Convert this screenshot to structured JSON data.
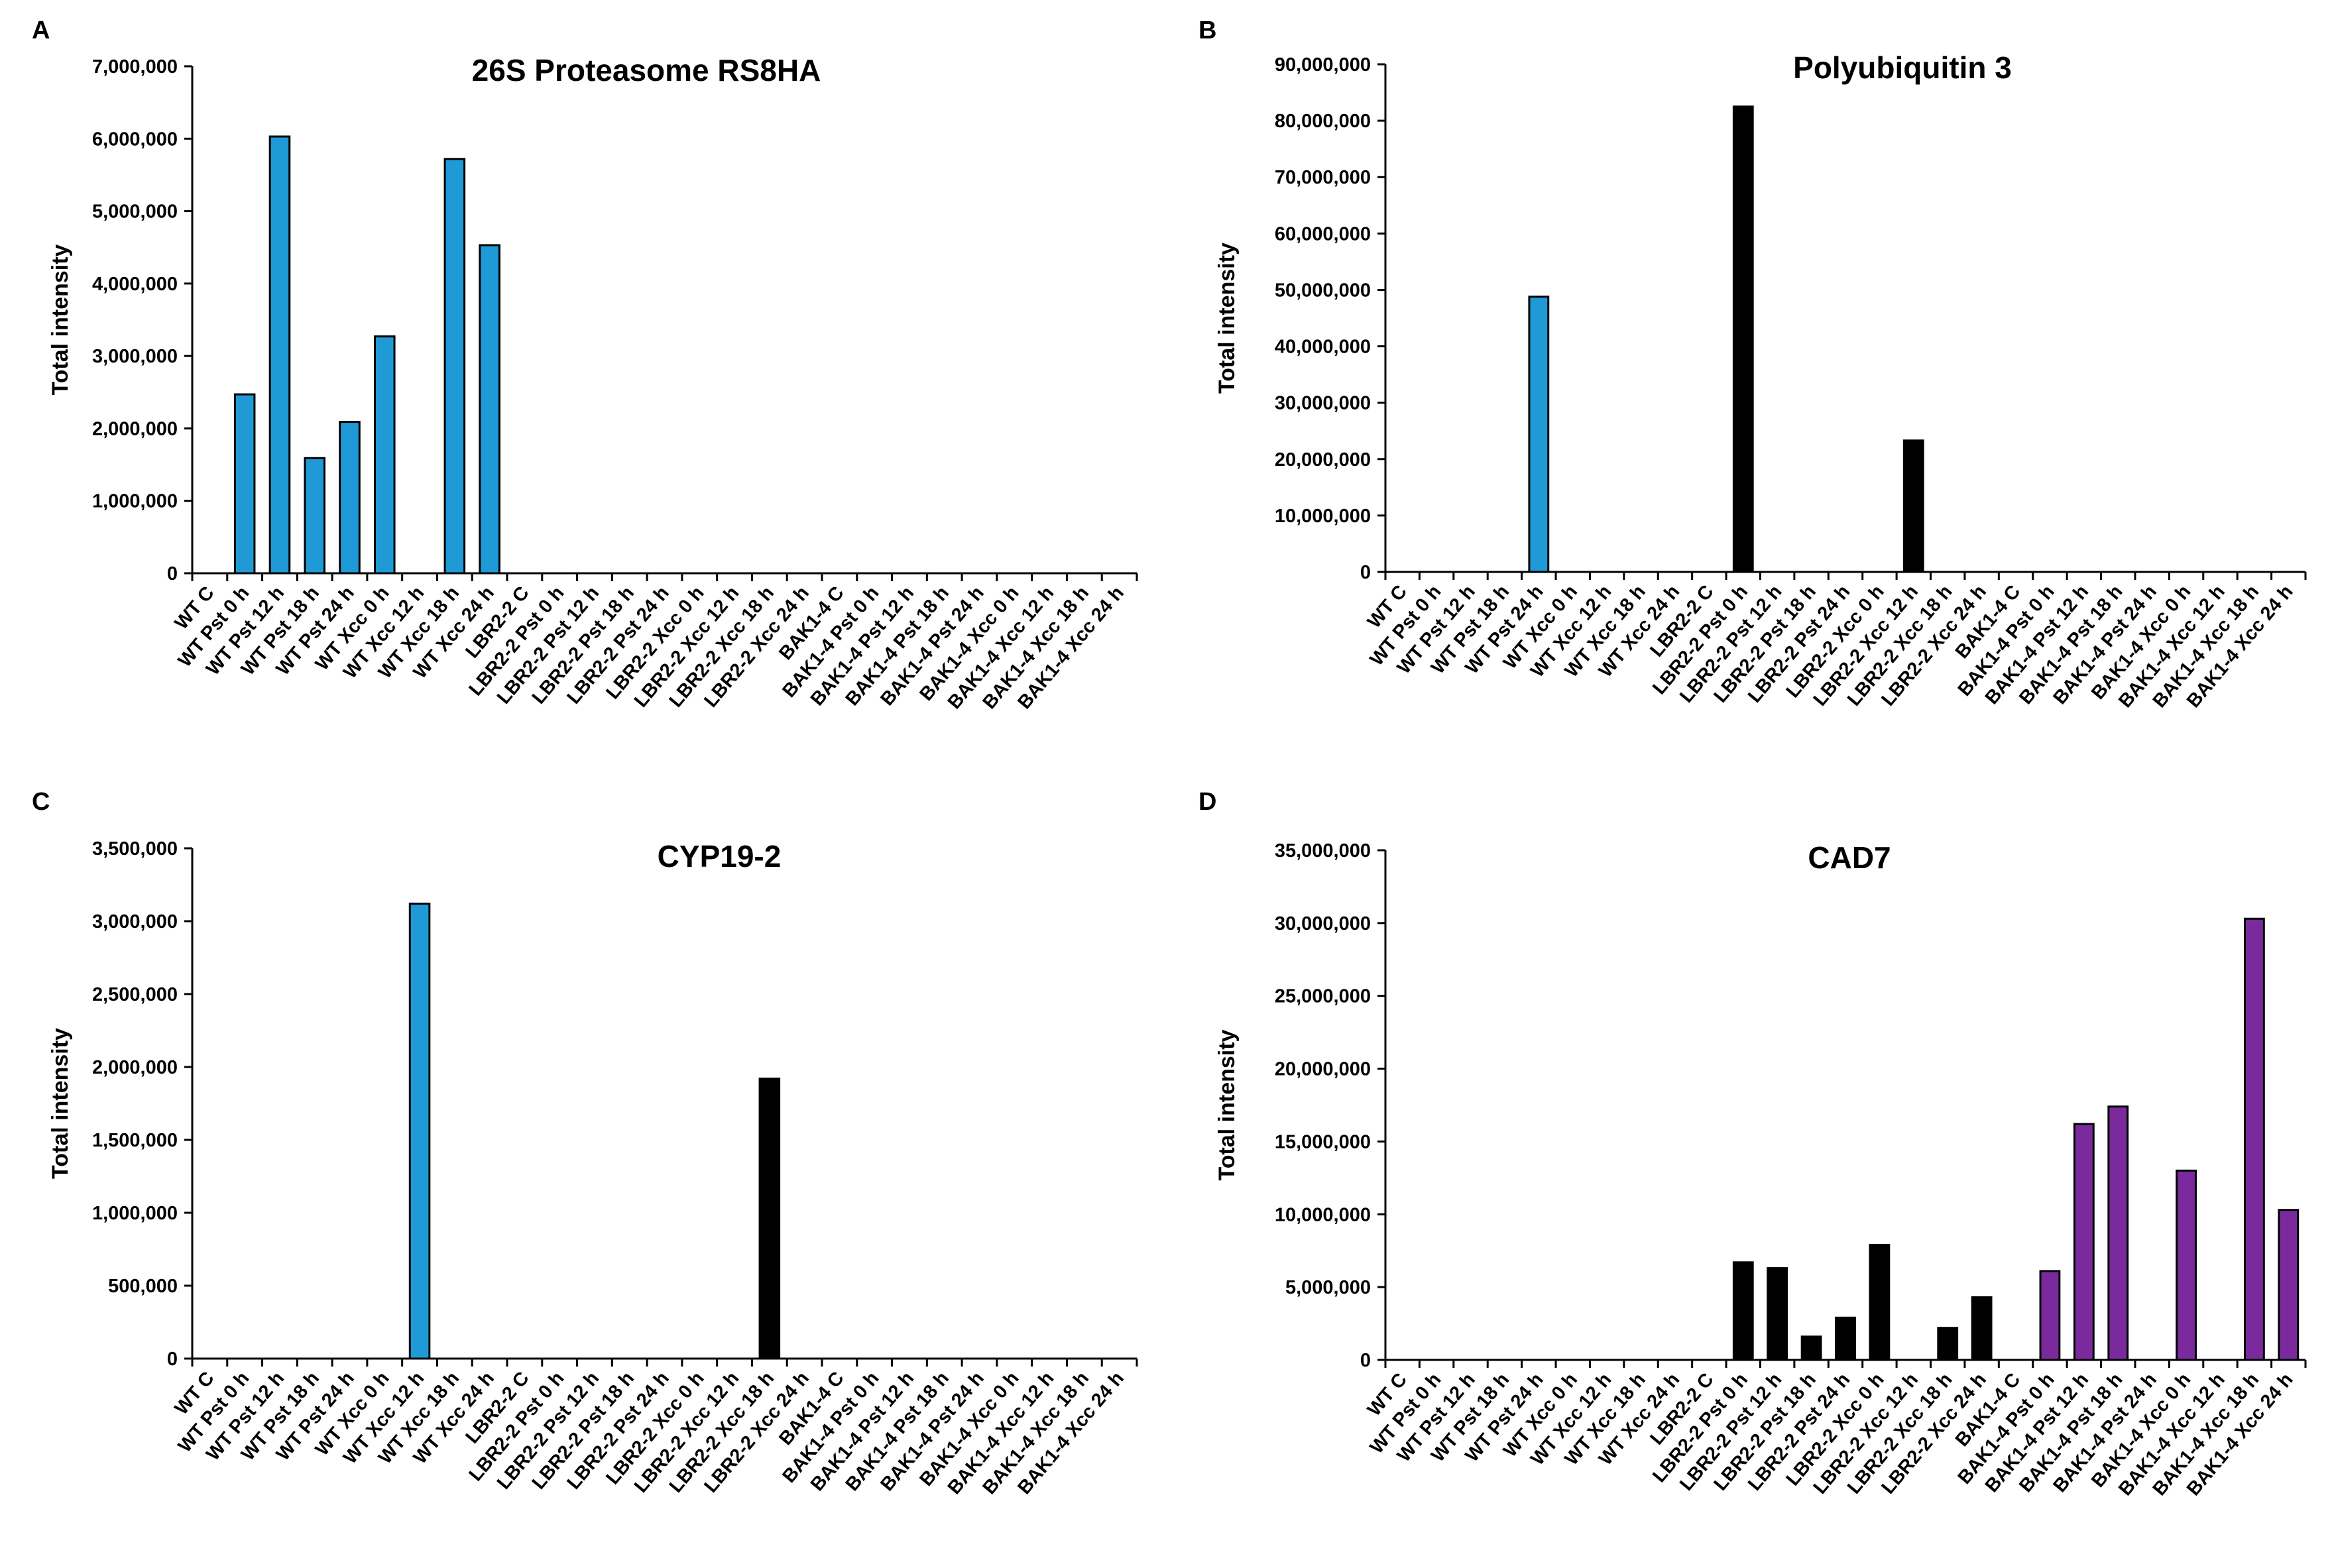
{
  "chart_data": [
    {
      "panel": "A",
      "type": "bar",
      "title": "26S Proteasome RS8HA",
      "ylabel": "Total intensity",
      "xlabel": "",
      "ylim": [
        0,
        7000000
      ],
      "yticks": [
        0,
        1000000,
        2000000,
        3000000,
        4000000,
        5000000,
        6000000,
        7000000
      ],
      "ytick_labels": [
        "0",
        "1,000,000",
        "2,000,000",
        "3,000,000",
        "4,000,000",
        "5,000,000",
        "6,000,000",
        "7,000,000"
      ],
      "categories": [
        "WT C",
        "WT Pst 0 h",
        "WT Pst 12 h",
        "WT Pst 18 h",
        "WT Pst 24 h",
        "WT Xcc 0 h",
        "WT Xcc 12 h",
        "WT Xcc 18 h",
        "WT Xcc 24 h",
        "LBR2-2 C",
        "LBR2-2 Pst 0 h",
        "LBR2-2 Pst 12 h",
        "LBR2-2 Pst 18 h",
        "LBR2-2 Pst 24 h",
        "LBR2-2 Xcc 0 h",
        "LBR2-2 Xcc 12 h",
        "LBR2-2 Xcc 18 h",
        "LBR2-2 Xcc 24 h",
        "BAK1-4 C",
        "BAK1-4 Pst 0 h",
        "BAK1-4 Pst 12 h",
        "BAK1-4 Pst 18 h",
        "BAK1-4 Pst 24 h",
        "BAK1-4 Xcc 0 h",
        "BAK1-4 Xcc 12 h",
        "BAK1-4 Xcc 18 h",
        "BAK1-4 Xcc 24 h"
      ],
      "values": [
        0,
        2470000,
        6030000,
        1590000,
        2090000,
        3270000,
        0,
        5720000,
        4530000,
        0,
        0,
        0,
        0,
        0,
        0,
        0,
        0,
        0,
        0,
        0,
        0,
        0,
        0,
        0,
        0,
        0,
        0
      ],
      "group_colors": {
        "WT": "#1f9ad6",
        "LBR2-2": "#000000",
        "BAK1-4": "#7b2a9e"
      }
    },
    {
      "panel": "B",
      "type": "bar",
      "title": "Polyubiquitin 3",
      "ylabel": "Total intensity",
      "xlabel": "",
      "ylim": [
        0,
        90000000
      ],
      "yticks": [
        0,
        10000000,
        20000000,
        30000000,
        40000000,
        50000000,
        60000000,
        70000000,
        80000000,
        90000000
      ],
      "ytick_labels": [
        "0",
        "10,000,000",
        "20,000,000",
        "30,000,000",
        "40,000,000",
        "50,000,000",
        "60,000,000",
        "70,000,000",
        "80,000,000",
        "90,000,000"
      ],
      "categories": [
        "WT C",
        "WT Pst 0 h",
        "WT Pst 12 h",
        "WT Pst 18 h",
        "WT Pst 24 h",
        "WT Xcc 0 h",
        "WT Xcc 12 h",
        "WT Xcc 18 h",
        "WT Xcc 24 h",
        "LBR2-2 C",
        "LBR2-2 Pst 0 h",
        "LBR2-2 Pst 12 h",
        "LBR2-2 Pst 18 h",
        "LBR2-2 Pst 24 h",
        "LBR2-2 Xcc 0 h",
        "LBR2-2 Xcc 12 h",
        "LBR2-2 Xcc 18 h",
        "LBR2-2 Xcc 24 h",
        "BAK1-4 C",
        "BAK1-4 Pst 0 h",
        "BAK1-4 Pst 12 h",
        "BAK1-4 Pst 18 h",
        "BAK1-4 Pst 24 h",
        "BAK1-4 Xcc 0 h",
        "BAK1-4 Xcc 12 h",
        "BAK1-4 Xcc 18 h",
        "BAK1-4 Xcc 24 h"
      ],
      "values": [
        0,
        0,
        0,
        0,
        48800000,
        0,
        0,
        0,
        0,
        0,
        82500000,
        0,
        0,
        0,
        0,
        23300000,
        0,
        0,
        0,
        0,
        0,
        0,
        0,
        0,
        0,
        0,
        0
      ],
      "group_colors": {
        "WT": "#1f9ad6",
        "LBR2-2": "#000000",
        "BAK1-4": "#7b2a9e"
      }
    },
    {
      "panel": "C",
      "type": "bar",
      "title": "CYP19-2",
      "ylabel": "Total intensity",
      "xlabel": "",
      "ylim": [
        0,
        3500000
      ],
      "yticks": [
        0,
        500000,
        1000000,
        1500000,
        2000000,
        2500000,
        3000000,
        3500000
      ],
      "ytick_labels": [
        "0",
        "500,000",
        "1,000,000",
        "1,500,000",
        "2,000,000",
        "2,500,000",
        "3,000,000",
        "3,500,000"
      ],
      "categories": [
        "WT C",
        "WT Pst 0 h",
        "WT Pst 12 h",
        "WT Pst 18 h",
        "WT Pst 24 h",
        "WT Xcc 0 h",
        "WT Xcc 12 h",
        "WT Xcc 18 h",
        "WT Xcc 24 h",
        "LBR2-2 C",
        "LBR2-2 Pst 0 h",
        "LBR2-2 Pst 12 h",
        "LBR2-2 Pst 18 h",
        "LBR2-2 Pst 24 h",
        "LBR2-2 Xcc 0 h",
        "LBR2-2 Xcc 12 h",
        "LBR2-2 Xcc 18 h",
        "LBR2-2 Xcc 24 h",
        "BAK1-4 C",
        "BAK1-4 Pst 0 h",
        "BAK1-4 Pst 12 h",
        "BAK1-4 Pst 18 h",
        "BAK1-4 Pst 24 h",
        "BAK1-4 Xcc 0 h",
        "BAK1-4 Xcc 12 h",
        "BAK1-4 Xcc 18 h",
        "BAK1-4 Xcc 24 h"
      ],
      "values": [
        0,
        0,
        0,
        0,
        0,
        0,
        3120000,
        0,
        0,
        0,
        0,
        0,
        0,
        0,
        0,
        0,
        1920000,
        0,
        0,
        0,
        0,
        0,
        0,
        0,
        0,
        0,
        0
      ],
      "group_colors": {
        "WT": "#1f9ad6",
        "LBR2-2": "#000000",
        "BAK1-4": "#7b2a9e"
      }
    },
    {
      "panel": "D",
      "type": "bar",
      "title": "CAD7",
      "ylabel": "Total intensity",
      "xlabel": "",
      "ylim": [
        0,
        35000000
      ],
      "yticks": [
        0,
        5000000,
        10000000,
        15000000,
        20000000,
        25000000,
        30000000,
        35000000
      ],
      "ytick_labels": [
        "0",
        "5,000,000",
        "10,000,000",
        "15,000,000",
        "20,000,000",
        "25,000,000",
        "30,000,000",
        "35,000,000"
      ],
      "categories": [
        "WT C",
        "WT Pst 0 h",
        "WT Pst 12 h",
        "WT Pst 18 h",
        "WT Pst 24 h",
        "WT Xcc 0 h",
        "WT Xcc 12 h",
        "WT Xcc 18 h",
        "WT Xcc 24 h",
        "LBR2-2 C",
        "LBR2-2 Pst 0 h",
        "LBR2-2 Pst 12 h",
        "LBR2-2 Pst 18 h",
        "LBR2-2 Pst 24 h",
        "LBR2-2 Xcc 0 h",
        "LBR2-2 Xcc 12 h",
        "LBR2-2 Xcc 18 h",
        "LBR2-2 Xcc 24 h",
        "BAK1-4 C",
        "BAK1-4 Pst 0 h",
        "BAK1-4 Pst 12 h",
        "BAK1-4 Pst 18 h",
        "BAK1-4 Pst 24 h",
        "BAK1-4 Xcc 0 h",
        "BAK1-4 Xcc 12 h",
        "BAK1-4 Xcc 18 h",
        "BAK1-4 Xcc 24 h"
      ],
      "values": [
        0,
        0,
        0,
        0,
        0,
        0,
        0,
        0,
        0,
        0,
        6700000,
        6300000,
        1600000,
        2900000,
        7900000,
        0,
        2200000,
        4300000,
        0,
        6100000,
        16200000,
        17400000,
        0,
        13000000,
        0,
        30300000,
        10300000
      ],
      "group_colors": {
        "WT": "#1f9ad6",
        "LBR2-2": "#000000",
        "BAK1-4": "#7b2a9e"
      }
    }
  ]
}
